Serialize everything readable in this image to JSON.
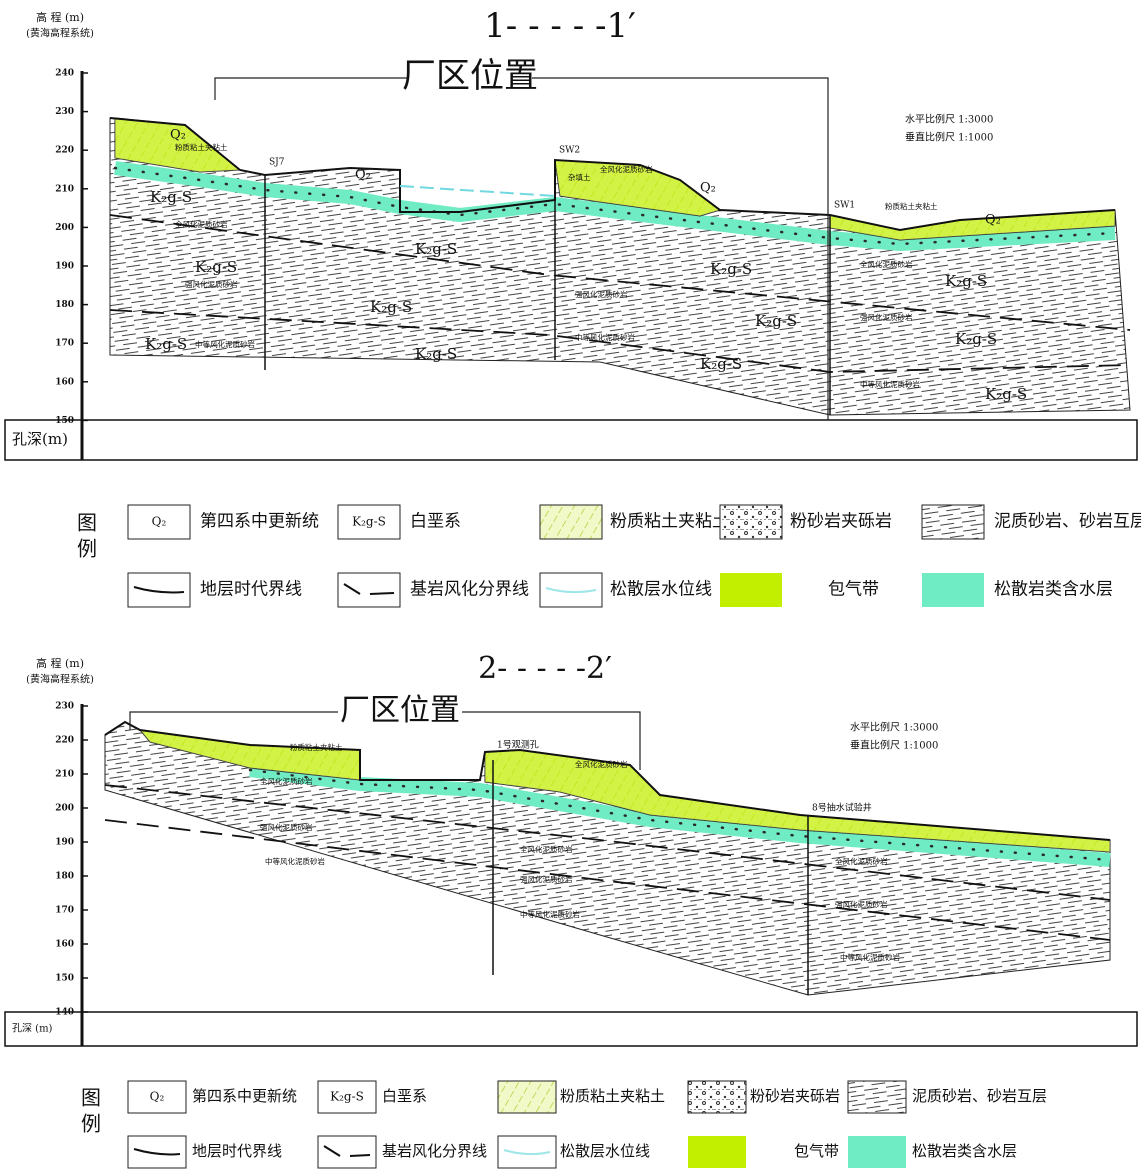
{
  "sections": [
    {
      "elevation_label": "高 程 (m)",
      "datum": "(黄海高程系统)",
      "title": "1- - - - -1′",
      "plant_area": "厂区位置",
      "yticks": [
        240,
        230,
        220,
        210,
        200,
        190,
        180,
        170,
        160,
        150
      ],
      "depth_label": "孔深(m)",
      "scale_h": "水平比例尺 1:3000",
      "scale_v": "垂直比例尺 1:1000",
      "boreholes": [
        "SJ7",
        "SW2",
        "SW1"
      ],
      "strata_labels": [
        "K₂g-S",
        "K₂g-S",
        "K₂g-S",
        "K₂g-S",
        "K₂g-S",
        "K₂g-S",
        "K₂g-S",
        "K₂g-S",
        "K₂g-S",
        "K₂g-S",
        "K₂g-S",
        "K₂g-S"
      ],
      "quaternary_labels": [
        "Q₂",
        "Q₂",
        "Q₂",
        "Q₂"
      ],
      "notes": [
        "粉质粘土夹粘土",
        "粉质粘土夹粘土",
        "全风化泥质砂岩",
        "全风化泥质砂岩",
        "全风化泥质砂岩",
        "强风化泥质砂岩",
        "强风化泥质砂岩",
        "强风化泥质砂岩",
        "中等风化泥质砂岩",
        "中等风化泥质砂岩",
        "中等风化泥质砂岩",
        "杂填土"
      ]
    },
    {
      "elevation_label": "高 程 (m)",
      "datum": "(黄海高程系统)",
      "title": "2- - - - -2′",
      "plant_area": "厂区位置",
      "yticks": [
        230,
        220,
        210,
        200,
        190,
        180,
        170,
        160,
        150,
        140
      ],
      "depth_label": "孔深 (m)",
      "scale_h": "水平比例尺 1:3000",
      "scale_v": "垂直比例尺 1:1000",
      "boreholes": [
        "1号观测孔",
        "8号抽水试验井"
      ],
      "strata_labels": [],
      "quaternary_labels": [],
      "notes": [
        "粉质粘土夹粘土",
        "全风化泥质砂岩",
        "全风化泥质砂岩",
        "全风化泥质砂岩",
        "全风化泥质砂岩",
        "强风化泥质砂岩",
        "强风化泥质砂岩",
        "强风化泥质砂岩",
        "中等风化泥质砂岩",
        "中等风化泥质砂岩",
        "中等风化泥质砂岩"
      ]
    }
  ],
  "legends": [
    {
      "title": "图例",
      "items": [
        {
          "symbol": "Q₂",
          "label": "第四系中更新统"
        },
        {
          "symbol": "K₂g-S",
          "label": "白垩系"
        },
        {
          "label": "粉质粘土夹粘土"
        },
        {
          "label": "粉砂岩夹砾岩"
        },
        {
          "label": "泥质砂岩、砂岩互层"
        },
        {
          "label": "地层时代界线"
        },
        {
          "label": "基岩风化分界线"
        },
        {
          "label": "松散层水位线"
        },
        {
          "label": "包气带"
        },
        {
          "label": "松散岩类含水层"
        }
      ]
    },
    {
      "title": "图例",
      "items": [
        {
          "symbol": "Q₂",
          "label": "第四系中更新统"
        },
        {
          "symbol": "K₂g-S",
          "label": "白垩系"
        },
        {
          "label": "粉质粘土夹粘土"
        },
        {
          "label": "粉砂岩夹砾岩"
        },
        {
          "label": "泥质砂岩、砂岩互层"
        },
        {
          "label": "地层时代界线"
        },
        {
          "label": "基岩风化分界线"
        },
        {
          "label": "松散层水位线"
        },
        {
          "label": "包气带"
        },
        {
          "label": "松散岩类含水层"
        }
      ]
    }
  ]
}
